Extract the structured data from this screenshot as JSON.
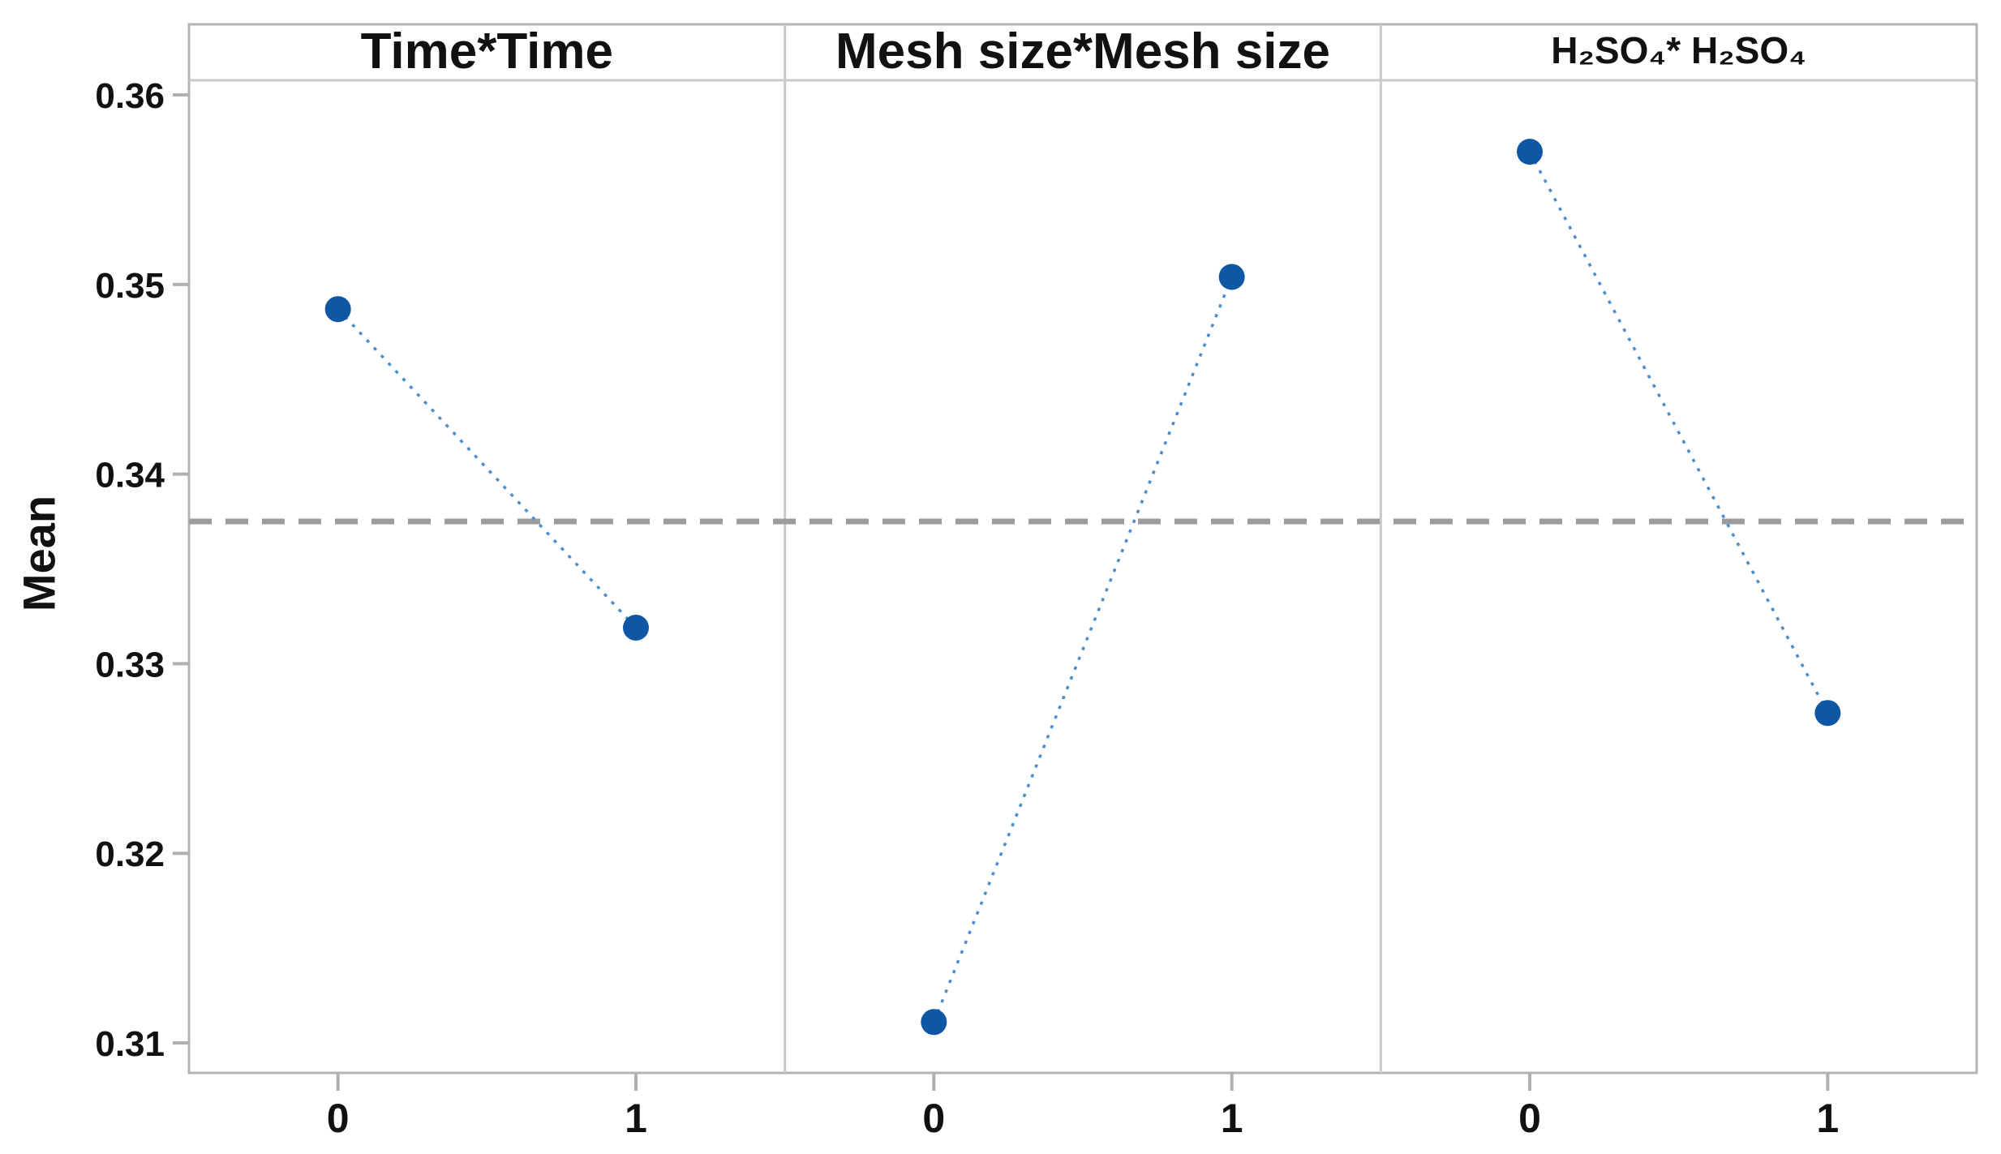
{
  "chart_data": {
    "type": "line",
    "subtype": "minitab-main-effects-interaction-plot",
    "title": "",
    "xlabel": "",
    "ylabel": "Mean",
    "panels": [
      {
        "title": "Time*Time",
        "small_title": false,
        "x": [
          0,
          1
        ],
        "values": [
          0.3487,
          0.3319
        ]
      },
      {
        "title": "Mesh size*Mesh size",
        "small_title": false,
        "x": [
          0,
          1
        ],
        "values": [
          0.3111,
          0.3504
        ]
      },
      {
        "title": "H₂SO₄* H₂SO₄",
        "small_title": true,
        "x": [
          0,
          1
        ],
        "values": [
          0.357,
          0.3274
        ]
      }
    ],
    "x_tick_labels": [
      "0",
      "1"
    ],
    "ytick_labels": [
      "0.31",
      "0.32",
      "0.33",
      "0.34",
      "0.35",
      "0.36"
    ],
    "yticks": [
      0.31,
      0.32,
      0.33,
      0.34,
      0.35,
      0.36
    ],
    "ylim": [
      0.3085,
      0.3611
    ],
    "reference_line": 0.3375,
    "reference_style": "dashed",
    "line_style": "dotted",
    "marker": "circle",
    "grid": false,
    "legend": "none",
    "colors": {
      "point": "#0e57a4",
      "segment": "#4d8dcb",
      "reference": "#9c9c9c",
      "outer_border": "#b3b3b3",
      "panel_divider": "#c9c9c9",
      "strip_line": "#c9c9c9",
      "tick_mark": "#b0b0b0",
      "text": "#111111",
      "background": "#ffffff"
    }
  }
}
